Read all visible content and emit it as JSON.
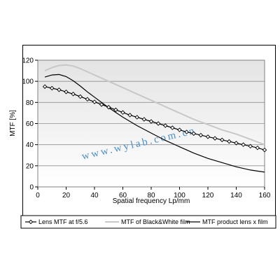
{
  "chart_data": {
    "type": "line",
    "title": "",
    "xlabel": "Spatial frequency  Lp/mm",
    "ylabel": "MTF  [%]",
    "xlim": [
      0,
      160
    ],
    "ylim": [
      0,
      120
    ],
    "x_ticks": [
      0,
      20,
      40,
      60,
      80,
      100,
      120,
      140,
      160
    ],
    "y_ticks": [
      0,
      20,
      40,
      60,
      80,
      100,
      120
    ],
    "grid": "horizontal",
    "legend_position": "bottom",
    "watermark": "www.wylab.com.cn",
    "series": [
      {
        "name": "Lens MTF at f/5.6",
        "color": "#000000",
        "marker": "diamond-open",
        "x": [
          5,
          10,
          15,
          20,
          25,
          30,
          35,
          40,
          45,
          50,
          55,
          60,
          65,
          70,
          75,
          80,
          85,
          90,
          95,
          100,
          105,
          110,
          115,
          120,
          125,
          130,
          135,
          140,
          145,
          150,
          155,
          160
        ],
        "values": [
          95,
          93.5,
          92,
          90,
          88,
          85.5,
          83,
          80.5,
          78,
          75.5,
          73,
          70.5,
          68,
          66,
          64,
          62,
          60,
          58,
          56,
          54,
          52,
          50.5,
          49,
          47.5,
          46,
          44.5,
          43,
          41.5,
          40,
          38.5,
          37,
          35
        ]
      },
      {
        "name": "MTF of Black&White film",
        "color": "#c8c8c8",
        "marker": "none",
        "x": [
          5,
          10,
          15,
          20,
          25,
          30,
          40,
          50,
          60,
          70,
          80,
          90,
          100,
          110,
          120,
          130,
          140,
          150,
          160
        ],
        "values": [
          110,
          113,
          115,
          115.5,
          114.5,
          112,
          106,
          100,
          94,
          88,
          82,
          76,
          70,
          64,
          59,
          54,
          50,
          45,
          40
        ]
      },
      {
        "name": "MTF product lens x film",
        "color": "#000000",
        "marker": "none",
        "x": [
          5,
          10,
          15,
          20,
          25,
          30,
          35,
          40,
          50,
          60,
          70,
          80,
          90,
          100,
          110,
          120,
          130,
          140,
          150,
          160
        ],
        "values": [
          104,
          106,
          106.5,
          104.5,
          100.5,
          95.5,
          90,
          85,
          75,
          66,
          58,
          51,
          44,
          38,
          32,
          27,
          23,
          19,
          16,
          14
        ]
      }
    ]
  }
}
